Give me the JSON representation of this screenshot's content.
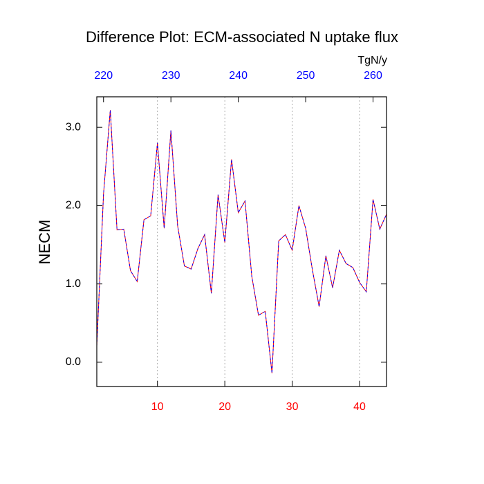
{
  "chart_data": {
    "type": "line",
    "title": "Difference Plot: ECM-associated N uptake flux",
    "y_label": "NECM",
    "x2_label": "TgN/y",
    "x": [
      1,
      2,
      3,
      4,
      5,
      6,
      7,
      8,
      9,
      10,
      11,
      12,
      13,
      14,
      15,
      16,
      17,
      18,
      19,
      20,
      21,
      22,
      23,
      24,
      25,
      26,
      27,
      28,
      29,
      30,
      31,
      32,
      33,
      34,
      35,
      36,
      37,
      38,
      39,
      40,
      41,
      42,
      43,
      44
    ],
    "series": [
      {
        "color": "#ff0000",
        "dash_color": "#0000ff",
        "values": [
          0.21,
          2.15,
          3.22,
          1.69,
          1.7,
          1.17,
          1.03,
          1.82,
          1.87,
          2.8,
          1.71,
          2.96,
          1.74,
          1.23,
          1.19,
          1.45,
          1.63,
          0.88,
          2.14,
          1.53,
          2.59,
          1.91,
          2.06,
          1.1,
          0.6,
          0.65,
          -0.14,
          1.55,
          1.63,
          1.43,
          2.0,
          1.71,
          1.18,
          0.71,
          1.36,
          0.95,
          1.43,
          1.26,
          1.21,
          1.02,
          0.9,
          2.08,
          1.7,
          1.89
        ]
      }
    ],
    "xlim": [
      1,
      44
    ],
    "xticks": [
      10,
      20,
      30,
      40
    ],
    "xtick_color": "#ff0000",
    "x2lim": [
      219,
      262
    ],
    "x2ticks": [
      220,
      230,
      240,
      250,
      260
    ],
    "x2tick_color": "#0000ff",
    "ylim": [
      -0.31,
      3.39
    ],
    "yticks": [
      {
        "value": 0,
        "label": "0.0"
      },
      {
        "value": 1,
        "label": "1.0"
      },
      {
        "value": 2,
        "label": "2.0"
      },
      {
        "value": 3,
        "label": "3.0"
      }
    ],
    "grid": true
  }
}
